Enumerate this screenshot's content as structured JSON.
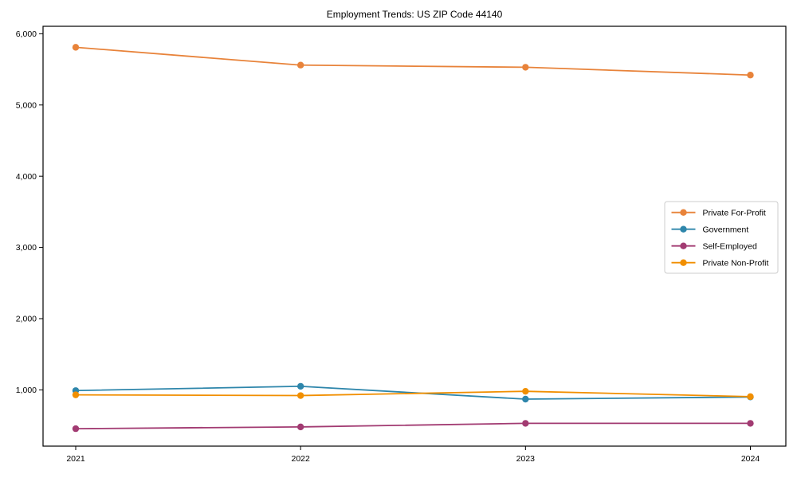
{
  "title": "Employment Trends: US ZIP Code 44140",
  "chart_data": {
    "type": "line",
    "title": "Employment Trends: US ZIP Code 44140",
    "xlabel": "",
    "ylabel": "",
    "x": [
      2021,
      2022,
      2023,
      2024
    ],
    "x_tick_labels": [
      "2021",
      "2022",
      "2023",
      "2024"
    ],
    "series": [
      {
        "name": "Private For-Profit",
        "color": "#E8833A",
        "values": [
          5810,
          5560,
          5530,
          5420
        ]
      },
      {
        "name": "Government",
        "color": "#2E86AB",
        "values": [
          990,
          1050,
          870,
          900
        ]
      },
      {
        "name": "Self-Employed",
        "color": "#A23B72",
        "values": [
          455,
          480,
          530,
          530
        ]
      },
      {
        "name": "Private Non-Profit",
        "color": "#F18F01",
        "values": [
          930,
          920,
          980,
          905
        ]
      }
    ],
    "y_ticks": [
      1000,
      2000,
      3000,
      4000,
      5000,
      6000
    ],
    "y_tick_labels": [
      "1,000",
      "2,000",
      "3,000",
      "4,000",
      "5,000",
      "6,000"
    ],
    "ylim": [
      210,
      6105
    ],
    "grid": false,
    "legend_position": "right",
    "marker": "o",
    "axis_color": "#000000",
    "legend_border_color": "#cccccc",
    "background_color": "#ffffff"
  }
}
